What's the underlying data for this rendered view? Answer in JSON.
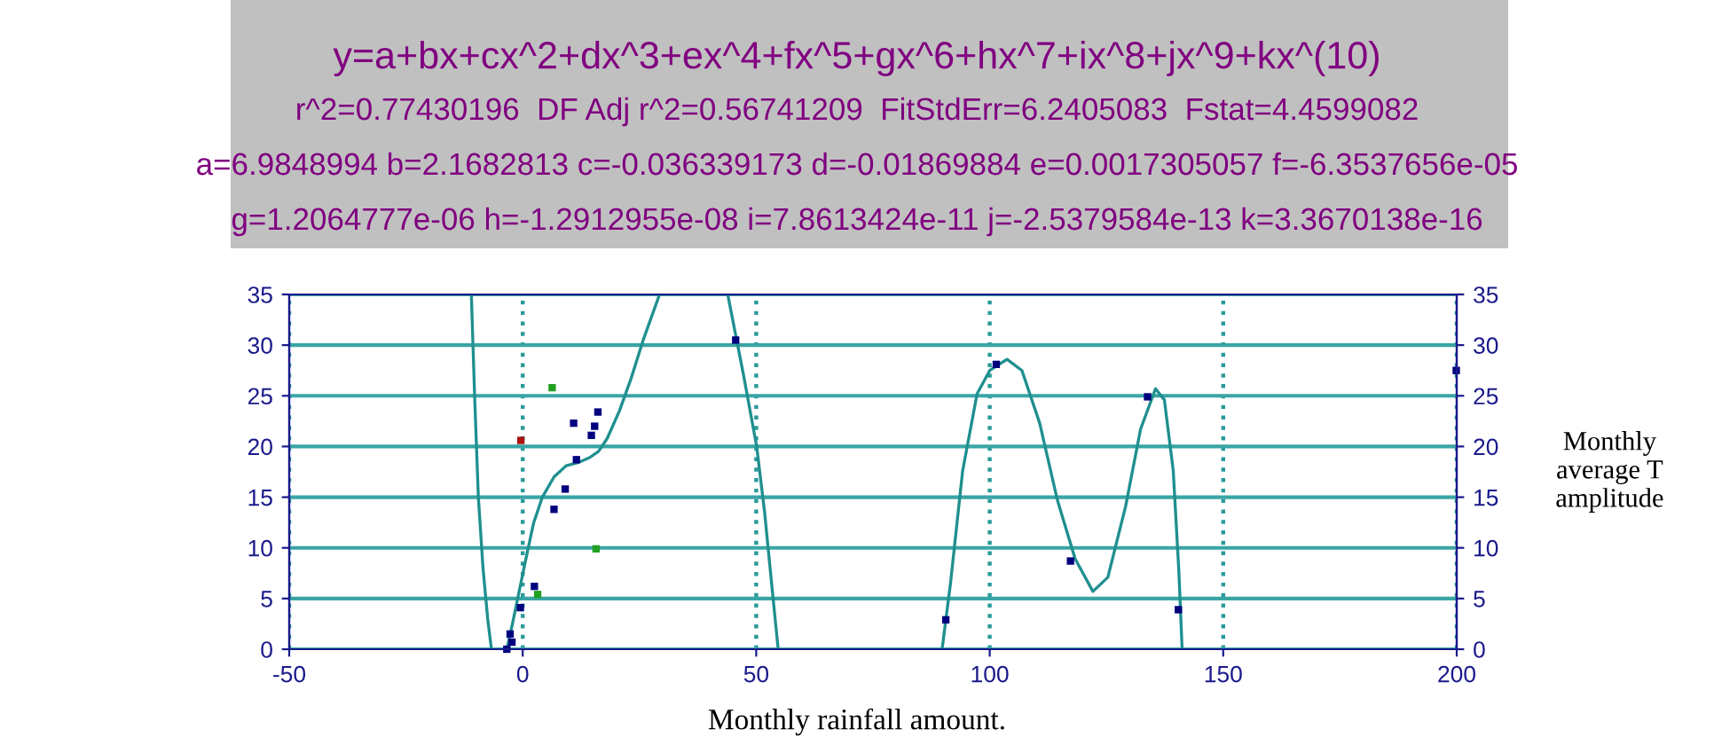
{
  "chart_data": {
    "type": "scatter",
    "title": "y=a+bx+cx^2+dx^3+ex^4+fx^5+gx^6+hx^7+ix^8+jx^9+kx^(10)",
    "annotations": [
      "r^2=0.77430196  DF Adj r^2=0.56741209  FitStdErr=6.2405083  Fstat=4.4599082",
      "a=6.9848994 b=2.1682813 c=-0.036339173 d=-0.01869884 e=0.0017305057 f=-6.3537656e-05",
      "g=1.2064777e-06 h=-1.2912955e-08 i=7.8613424e-11 j=-2.5379584e-13 k=3.3670138e-16"
    ],
    "xlabel": "Monthly rainfall amount.",
    "y2label": "Monthly\naverage T\namplitude",
    "xlim": [
      -50,
      200
    ],
    "xticks": [
      -50,
      0,
      50,
      100,
      150,
      200
    ],
    "ylim": [
      0,
      35
    ],
    "yticks": [
      0,
      5,
      10,
      15,
      20,
      25,
      30,
      35
    ],
    "y2lim": [
      0,
      35
    ],
    "y2ticks": [
      0,
      5,
      10,
      15,
      20,
      25,
      30,
      35
    ],
    "grid": true,
    "series": [
      {
        "type": "line",
        "color": "#1f8f8f",
        "line_style": "solid",
        "marker": "none",
        "x": [
          -11.0,
          -10.3,
          -9.5,
          -8.5,
          -7.5,
          -6.7,
          -5.0,
          -3.4,
          -2.2,
          -0.9,
          0.4,
          2.3,
          4.2,
          6.7,
          9.3,
          11.8,
          14.3,
          16.2,
          18.1,
          20.7,
          23.2,
          25.8,
          29.3,
          36.0,
          43.9,
          47.3,
          50.1,
          51.8,
          53.4,
          54.7,
          70.0,
          89.8,
          91.6,
          94.2,
          97.3,
          100.0,
          103.7,
          106.9,
          110.7,
          114.5,
          118.3,
          122.1,
          125.3,
          129.1,
          132.3,
          135.5,
          137.4,
          139.3,
          140.5,
          141.2
        ],
        "values": [
          35,
          25,
          15,
          8,
          3,
          0,
          null,
          0,
          2.5,
          5.4,
          8.3,
          12.4,
          15,
          17,
          18.1,
          18.4,
          18.9,
          19.5,
          20.8,
          23.5,
          26.7,
          30.5,
          35,
          null,
          35,
          27,
          20,
          13.5,
          6,
          0,
          null,
          0,
          6.5,
          17.6,
          25.2,
          27.5,
          28.6,
          27.5,
          22.3,
          14.7,
          8.9,
          5.7,
          7.1,
          14.1,
          21.7,
          25.7,
          24.6,
          17.6,
          7.7,
          0
        ]
      },
      {
        "marker": "square",
        "color": "#00007f",
        "x": [
          -3.4,
          -2.7,
          -2.3,
          -0.5,
          -0.4,
          2.5,
          3.2,
          6.3,
          6.7,
          9.1,
          10.9,
          11.5,
          14.7,
          15.4,
          16.1,
          15.7,
          45.6,
          90.6,
          101.4,
          117.3,
          133.8,
          140.4,
          199.9
        ],
        "values": [
          0,
          1.5,
          0.7,
          4.1,
          20.6,
          6.2,
          5.4,
          25.8,
          13.8,
          15.8,
          22.3,
          18.7,
          21.1,
          22.0,
          23.4,
          9.9,
          30.5,
          2.9,
          28.1,
          8.7,
          24.9,
          3.9,
          27.5
        ],
        "colors": [
          "#00007f",
          "#00007f",
          "#00007f",
          "#00007f",
          "#aa1111",
          "#00007f",
          "#22a022",
          "#22a022",
          "#00007f",
          "#00007f",
          "#00007f",
          "#00007f",
          "#00007f",
          "#00007f",
          "#00007f",
          "#22a022",
          "#00007f",
          "#00007f",
          "#00007f",
          "#00007f",
          "#00007f",
          "#00007f",
          "#00007f"
        ]
      }
    ]
  }
}
